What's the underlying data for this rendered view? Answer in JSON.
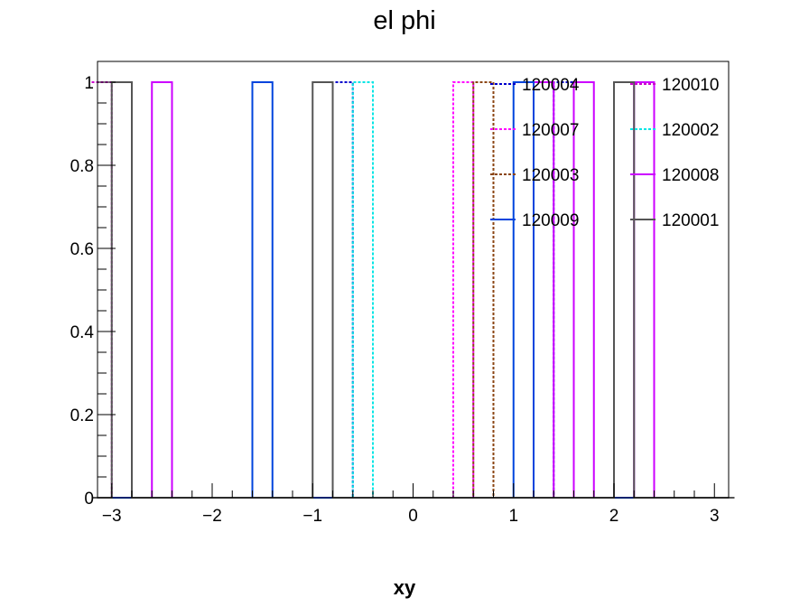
{
  "chart_data": {
    "type": "step-histogram",
    "title": "el phi",
    "xlabel": "xy",
    "ylabel": "",
    "xlim": [
      -3.1416,
      3.1416
    ],
    "ylim": [
      0,
      1.05
    ],
    "bin_width": 0.2,
    "x_ticks": [
      {
        "value": -3,
        "label": "−3"
      },
      {
        "value": -2,
        "label": "−2"
      },
      {
        "value": -1,
        "label": "−1"
      },
      {
        "value": 0,
        "label": "0"
      },
      {
        "value": 1,
        "label": "1"
      },
      {
        "value": 2,
        "label": "2"
      },
      {
        "value": 3,
        "label": "3"
      }
    ],
    "y_ticks": [
      {
        "value": 0,
        "label": "0"
      },
      {
        "value": 0.2,
        "label": "0.2"
      },
      {
        "value": 0.4,
        "label": "0.4"
      },
      {
        "value": 0.6,
        "label": "0.6"
      },
      {
        "value": 0.8,
        "label": "0.8"
      },
      {
        "value": 1,
        "label": "1"
      }
    ],
    "series": [
      {
        "name": "120004",
        "color": "#0000cc",
        "dashed": true,
        "bins": [
          {
            "x0": -0.8,
            "x1": -0.6,
            "y": 1
          },
          {
            "x0": 1.4,
            "x1": 1.6,
            "y": 1
          }
        ]
      },
      {
        "name": "120010",
        "color": "#cc00cc",
        "dashed": true,
        "bins": [
          {
            "x0": -3.2,
            "x1": -3.0,
            "y": 1
          }
        ]
      },
      {
        "name": "120007",
        "color": "#ff00ff",
        "dashed": true,
        "bins": [
          {
            "x0": 0.4,
            "x1": 0.6,
            "y": 1
          }
        ]
      },
      {
        "name": "120002",
        "color": "#00e5e5",
        "dashed": true,
        "bins": [
          {
            "x0": -0.6,
            "x1": -0.4,
            "y": 1
          }
        ]
      },
      {
        "name": "120003",
        "color": "#8b4513",
        "dashed": true,
        "bins": [
          {
            "x0": 0.6,
            "x1": 0.8,
            "y": 1
          }
        ]
      },
      {
        "name": "120008",
        "color": "#cc00ff",
        "dashed": false,
        "bins": [
          {
            "x0": -2.6,
            "x1": -2.4,
            "y": 1
          },
          {
            "x0": 1.2,
            "x1": 1.4,
            "y": 1
          },
          {
            "x0": 1.6,
            "x1": 1.8,
            "y": 1
          },
          {
            "x0": 2.2,
            "x1": 2.4,
            "y": 1
          }
        ]
      },
      {
        "name": "120009",
        "color": "#0044dd",
        "dashed": false,
        "bins": [
          {
            "x0": -1.6,
            "x1": -1.4,
            "y": 1
          },
          {
            "x0": 1.0,
            "x1": 1.2,
            "y": 1
          }
        ]
      },
      {
        "name": "120001",
        "color": "#555555",
        "dashed": false,
        "bins": [
          {
            "x0": -3.0,
            "x1": -2.8,
            "y": 1
          },
          {
            "x0": -1.0,
            "x1": -0.8,
            "y": 1
          },
          {
            "x0": 2.0,
            "x1": 2.2,
            "y": 1
          }
        ]
      }
    ],
    "legend": {
      "position": "top-right",
      "columns": 2,
      "order": [
        "120004",
        "120010",
        "120007",
        "120002",
        "120003",
        "120008",
        "120009",
        "120001"
      ]
    },
    "grid": false
  }
}
